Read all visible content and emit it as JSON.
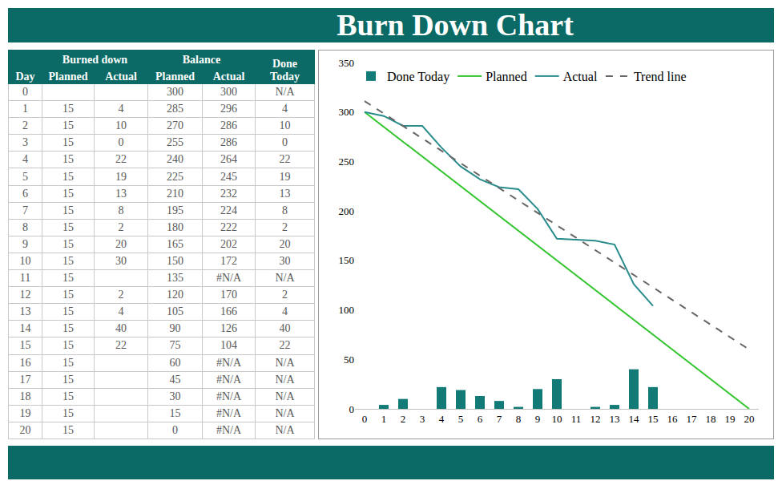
{
  "header": {
    "title": "Burn Down Chart"
  },
  "table": {
    "columns": [
      {
        "group": null,
        "label": "Day"
      },
      {
        "group": "Burned down",
        "label": "Planned"
      },
      {
        "group": "Burned down",
        "label": "Actual"
      },
      {
        "group": "Balance",
        "label": "Planned"
      },
      {
        "group": "Balance",
        "label": "Actual"
      },
      {
        "group": null,
        "label": "Done Today"
      }
    ],
    "rows": [
      [
        0,
        null,
        null,
        300,
        300,
        "N/A"
      ],
      [
        1,
        15,
        4,
        285,
        296,
        4
      ],
      [
        2,
        15,
        10,
        270,
        286,
        10
      ],
      [
        3,
        15,
        0,
        255,
        286,
        0
      ],
      [
        4,
        15,
        22,
        240,
        264,
        22
      ],
      [
        5,
        15,
        19,
        225,
        245,
        19
      ],
      [
        6,
        15,
        13,
        210,
        232,
        13
      ],
      [
        7,
        15,
        8,
        195,
        224,
        8
      ],
      [
        8,
        15,
        2,
        180,
        222,
        2
      ],
      [
        9,
        15,
        20,
        165,
        202,
        20
      ],
      [
        10,
        15,
        30,
        150,
        172,
        30
      ],
      [
        11,
        15,
        null,
        135,
        "#N/A",
        "N/A"
      ],
      [
        12,
        15,
        2,
        120,
        170,
        2
      ],
      [
        13,
        15,
        4,
        105,
        166,
        4
      ],
      [
        14,
        15,
        40,
        90,
        126,
        40
      ],
      [
        15,
        15,
        22,
        75,
        104,
        22
      ],
      [
        16,
        15,
        null,
        60,
        "#N/A",
        "N/A"
      ],
      [
        17,
        15,
        null,
        45,
        "#N/A",
        "N/A"
      ],
      [
        18,
        15,
        null,
        30,
        "#N/A",
        "N/A"
      ],
      [
        19,
        15,
        null,
        15,
        "#N/A",
        "N/A"
      ],
      [
        20,
        15,
        null,
        0,
        "#N/A",
        "N/A"
      ]
    ]
  },
  "chart_data": {
    "type": "line",
    "x": [
      0,
      1,
      2,
      3,
      4,
      5,
      6,
      7,
      8,
      9,
      10,
      11,
      12,
      13,
      14,
      15,
      16,
      17,
      18,
      19,
      20
    ],
    "series": [
      {
        "name": "Done Today",
        "type": "bar",
        "color": "#137b77",
        "values": [
          null,
          4,
          10,
          0,
          22,
          19,
          13,
          8,
          2,
          20,
          30,
          null,
          2,
          4,
          40,
          22,
          null,
          null,
          null,
          null,
          null
        ]
      },
      {
        "name": "Planned",
        "type": "line",
        "color": "#33c52e",
        "line_style": "solid",
        "values": [
          300,
          285,
          270,
          255,
          240,
          225,
          210,
          195,
          180,
          165,
          150,
          135,
          120,
          105,
          90,
          75,
          60,
          45,
          30,
          15,
          0
        ]
      },
      {
        "name": "Actual",
        "type": "line",
        "color": "#2a8c8c",
        "line_style": "solid",
        "values": [
          300,
          296,
          286,
          286,
          264,
          245,
          232,
          224,
          222,
          202,
          172,
          null,
          170,
          166,
          126,
          104,
          null,
          null,
          null,
          null,
          null
        ]
      },
      {
        "name": "Trend line",
        "type": "line",
        "color": "#666666",
        "line_style": "dashed",
        "x": [
          0,
          20
        ],
        "values": [
          311,
          60
        ]
      }
    ],
    "xlim": [
      -0.5,
      20.5
    ],
    "xticks": [
      0,
      1,
      2,
      3,
      4,
      5,
      6,
      7,
      8,
      9,
      10,
      11,
      12,
      13,
      14,
      15,
      16,
      17,
      18,
      19,
      20
    ],
    "ylim": [
      0,
      350
    ],
    "yticks": [
      0,
      50,
      100,
      150,
      200,
      250,
      300,
      350
    ],
    "grid": false,
    "legend": "top"
  }
}
